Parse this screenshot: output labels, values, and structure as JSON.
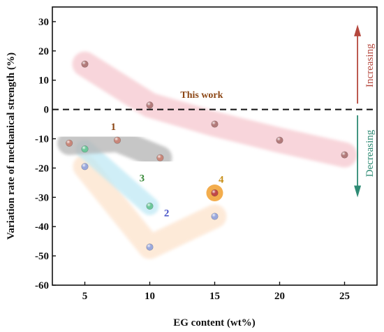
{
  "chart_data": {
    "type": "scatter",
    "title": "",
    "xlabel": "EG content (wt%)",
    "ylabel": "Variation rate of mechanical strength (%)",
    "xlim": [
      2.5,
      27.5
    ],
    "ylim": [
      -60,
      35
    ],
    "xticks": [
      5,
      10,
      15,
      20,
      25
    ],
    "yticks": [
      -60,
      -50,
      -40,
      -30,
      -20,
      -10,
      0,
      10,
      20,
      30
    ],
    "grid": false,
    "reference_line": {
      "y": 0,
      "style": "dashed"
    },
    "series": [
      {
        "name": "This work",
        "color": "#b27a7a",
        "band_color": "#f6c8cf",
        "label_color": "#8b4513",
        "points": [
          {
            "x": 5,
            "y": 15.5
          },
          {
            "x": 10,
            "y": 1.5
          },
          {
            "x": 15,
            "y": -5
          },
          {
            "x": 20,
            "y": -10.5
          },
          {
            "x": 25,
            "y": -15.5
          }
        ]
      },
      {
        "name": "1",
        "color": "#c8877a",
        "band_color": "#b3b3b3",
        "label_color": "#8b4513",
        "points": [
          {
            "x": 3.8,
            "y": -11.5
          },
          {
            "x": 7.5,
            "y": -10.5
          },
          {
            "x": 10.8,
            "y": -16.5
          }
        ]
      },
      {
        "name": "2",
        "color": "#9aa8dc",
        "band_color": "#fde3cc",
        "label_color": "#4a55c8",
        "points": [
          {
            "x": 5,
            "y": -19.5
          },
          {
            "x": 10,
            "y": -47
          },
          {
            "x": 15,
            "y": -36.5
          }
        ]
      },
      {
        "name": "3",
        "color": "#6cc79a",
        "band_color": "#bfe9f5",
        "label_color": "#3a8a3a",
        "points": [
          {
            "x": 5,
            "y": -13.5
          },
          {
            "x": 10,
            "y": -33
          }
        ]
      },
      {
        "name": "4",
        "color": "#c04848",
        "band_color": "#f2a43a",
        "label_color": "#c8901a",
        "points": [
          {
            "x": 15,
            "y": -28.5
          }
        ]
      }
    ],
    "annotations": [
      {
        "id": "increasing",
        "text": "Increasing",
        "color": "#b5483e"
      },
      {
        "id": "decreasing",
        "text": "Decreasing",
        "color": "#2e8b74"
      }
    ]
  }
}
